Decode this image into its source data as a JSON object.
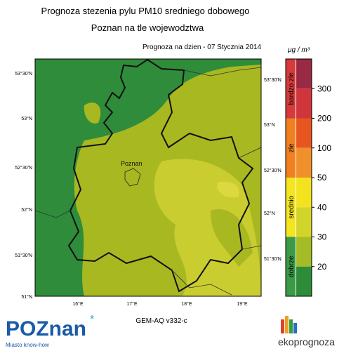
{
  "header": {
    "title": "Prognoza stezenia pylu PM10 sredniego dobowego",
    "subtitle": "Poznan na tle wojewodztwa",
    "date": "Prognoza na dzien -  07 Stycznia 2014"
  },
  "map": {
    "city": "Poznan",
    "lat_left": [
      "53°30'N",
      "53°N",
      "52°30'N",
      "52°N",
      "51°30'N",
      "51°N"
    ],
    "lat_right": [
      "53°30'N",
      "53°N",
      "52°30'N",
      "52°N",
      "51°30'N"
    ],
    "lon": [
      "16°E",
      "17°E",
      "18°E",
      "19°E"
    ]
  },
  "legend": {
    "unit": "μg / m³",
    "levels": [
      {
        "label": 300,
        "color": "#d0353b"
      },
      {
        "label": 200,
        "color": "#e8561f"
      },
      {
        "label": 100,
        "color": "#f0902a"
      },
      {
        "label": 50,
        "color": "#f3e31e"
      },
      {
        "label": 40,
        "color": "#d3d42a"
      },
      {
        "label": 30,
        "color": "#a4bc26"
      },
      {
        "label": 20,
        "color": "#2e8b3a"
      }
    ],
    "top_color": "#9a2a44",
    "categories": [
      {
        "label": "bardzo zle",
        "color": "#d63a3a"
      },
      {
        "label": "zle",
        "color": "#f08020"
      },
      {
        "label": "srednio",
        "color": "#f3e51f"
      },
      {
        "label": "dobrze",
        "color": "#3a9a45"
      }
    ]
  },
  "footer": {
    "model": "GEM-AQ v332-c",
    "logo_left": "POZnan",
    "logo_tagline": "Miasto know-how",
    "logo_right": "ekoprognoza"
  }
}
